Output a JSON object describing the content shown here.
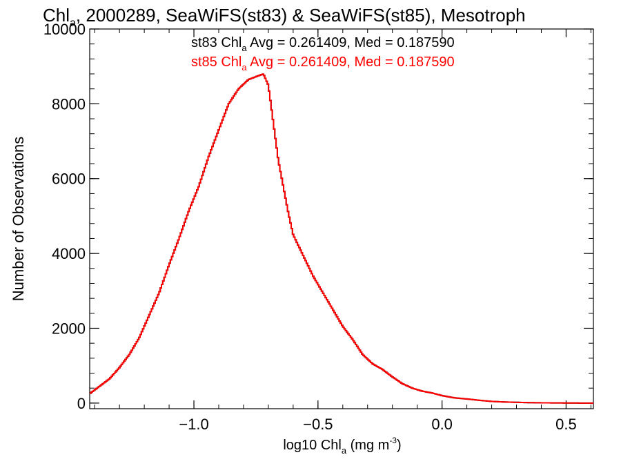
{
  "chart_data": {
    "type": "line",
    "title": "Chl",
    "title_sub": "a",
    "title_rest": ", 2000289, SeaWiFS(st83) & SeaWiFS(st85), Mesotroph",
    "xlabel": "log10 Chl",
    "xlabel_sub": "a",
    "xlabel_unit": " (mg m",
    "xlabel_sup": "-3",
    "xlabel_close": ")",
    "ylabel": "Number of Observations",
    "xlim": [
      -1.42,
      0.61
    ],
    "ylim": [
      -150,
      10000
    ],
    "x_ticks": [
      -1.0,
      -0.5,
      0.0,
      0.5
    ],
    "x_tick_labels": [
      "−1.0",
      "−0.5",
      "0.0",
      "0.5"
    ],
    "y_ticks": [
      0,
      2000,
      4000,
      6000,
      8000,
      10000
    ],
    "y_tick_labels": [
      "0",
      "2000",
      "4000",
      "6000",
      "8000",
      "10000"
    ],
    "annotations": [
      {
        "prefix": "st83 Chl",
        "sub": "a",
        "rest": " Avg = 0.261409, Med = 0.187590",
        "color": "#000000"
      },
      {
        "prefix": "st85 Chl",
        "sub": "a",
        "rest": " Avg = 0.261409, Med = 0.187590",
        "color": "#ff0000"
      }
    ],
    "series": [
      {
        "color": "#ff0000",
        "x": [
          -1.42,
          -1.38,
          -1.34,
          -1.3,
          -1.26,
          -1.22,
          -1.18,
          -1.14,
          -1.1,
          -1.06,
          -1.02,
          -0.98,
          -0.94,
          -0.9,
          -0.86,
          -0.82,
          -0.78,
          -0.76,
          -0.74,
          -0.72,
          -0.7,
          -0.68,
          -0.66,
          -0.64,
          -0.62,
          -0.6,
          -0.56,
          -0.52,
          -0.48,
          -0.44,
          -0.4,
          -0.36,
          -0.32,
          -0.28,
          -0.24,
          -0.2,
          -0.16,
          -0.12,
          -0.08,
          -0.04,
          0.0,
          0.05,
          0.1,
          0.15,
          0.2,
          0.25,
          0.3,
          0.35,
          0.4,
          0.45,
          0.5,
          0.55,
          0.61
        ],
        "y": [
          250,
          450,
          650,
          950,
          1300,
          1750,
          2350,
          2950,
          3700,
          4400,
          5150,
          5800,
          6600,
          7300,
          8000,
          8400,
          8650,
          8700,
          8750,
          8800,
          8500,
          7500,
          6500,
          5800,
          5100,
          4500,
          3950,
          3400,
          2950,
          2500,
          2050,
          1700,
          1300,
          1050,
          900,
          700,
          520,
          400,
          320,
          270,
          200,
          140,
          110,
          75,
          45,
          30,
          20,
          12,
          8,
          5,
          3,
          1,
          0
        ]
      }
    ]
  }
}
